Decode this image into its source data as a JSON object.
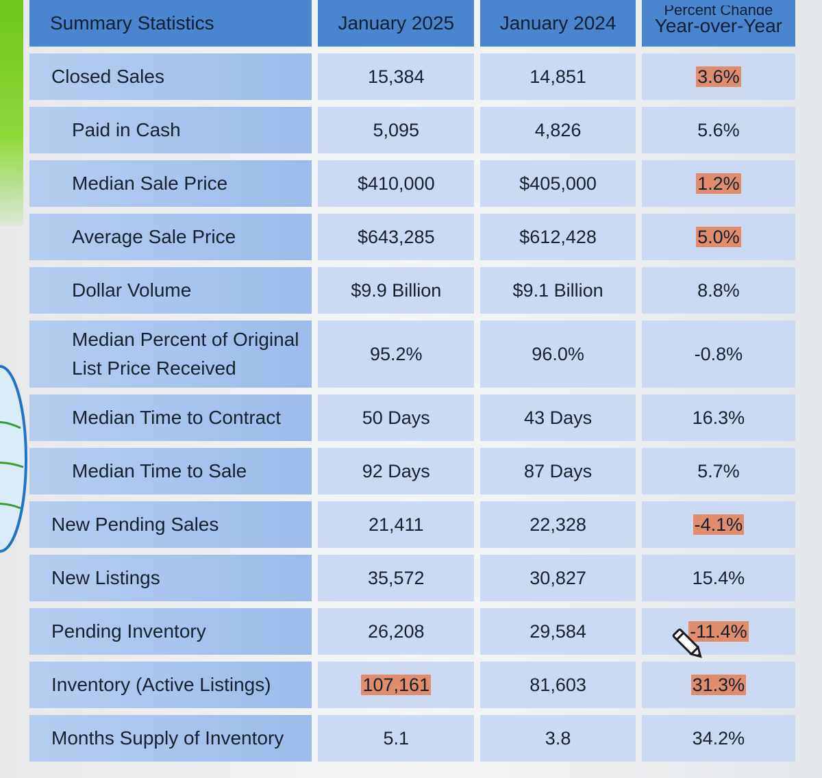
{
  "table": {
    "headers": {
      "metric": "Summary Statistics",
      "col1": "January 2025",
      "col2": "January 2024",
      "col3_line1": "Percent Change",
      "col3_line2": "Year-over-Year"
    },
    "rows": [
      {
        "label": "Closed Sales",
        "jan2025": "15,384",
        "jan2024": "14,851",
        "change": "3.6%",
        "highlight_change": true
      },
      {
        "label": "Paid in Cash",
        "jan2025": "5,095",
        "jan2024": "4,826",
        "change": "5.6%"
      },
      {
        "label": "Median Sale Price",
        "jan2025": "$410,000",
        "jan2024": "$405,000",
        "change": "1.2%",
        "highlight_change": true
      },
      {
        "label": "Average Sale Price",
        "jan2025": "$643,285",
        "jan2024": "$612,428",
        "change": "5.0%",
        "highlight_change": true
      },
      {
        "label": "Dollar Volume",
        "jan2025": "$9.9 Billion",
        "jan2024": "$9.1 Billion",
        "change": "8.8%"
      },
      {
        "label_line1": "Median Percent of Original",
        "label_line2": "List Price Received",
        "jan2025": "95.2%",
        "jan2024": "96.0%",
        "change": "-0.8%"
      },
      {
        "label": "Median Time to Contract",
        "jan2025": "50 Days",
        "jan2024": "43 Days",
        "change": "16.3%"
      },
      {
        "label": "Median Time to Sale",
        "jan2025": "92 Days",
        "jan2024": "87 Days",
        "change": "5.7%"
      },
      {
        "label": "New Pending Sales",
        "jan2025": "21,411",
        "jan2024": "22,328",
        "change": "-4.1%",
        "highlight_change": true
      },
      {
        "label": "New Listings",
        "jan2025": "35,572",
        "jan2024": "30,827",
        "change": "15.4%"
      },
      {
        "label": "Pending Inventory",
        "jan2025": "26,208",
        "jan2024": "29,584",
        "change": "-11.4%",
        "highlight_change": true
      },
      {
        "label": "Inventory (Active Listings)",
        "jan2025": "107,161",
        "jan2024": "81,603",
        "change": "31.3%",
        "highlight_jan2025": true,
        "highlight_change": true
      },
      {
        "label": "Months Supply of Inventory",
        "jan2025": "5.1",
        "jan2024": "3.8",
        "change": "34.2%"
      }
    ]
  },
  "colors": {
    "header_bg": "#4a86d0",
    "label_bg": "#9cbbea",
    "value_bg": "#cbdaf2",
    "highlight": "#df8d6c",
    "accent_green": "#6cc61e"
  },
  "icons": {
    "cursor": "pencil-icon",
    "logo": "globe-map-icon"
  }
}
